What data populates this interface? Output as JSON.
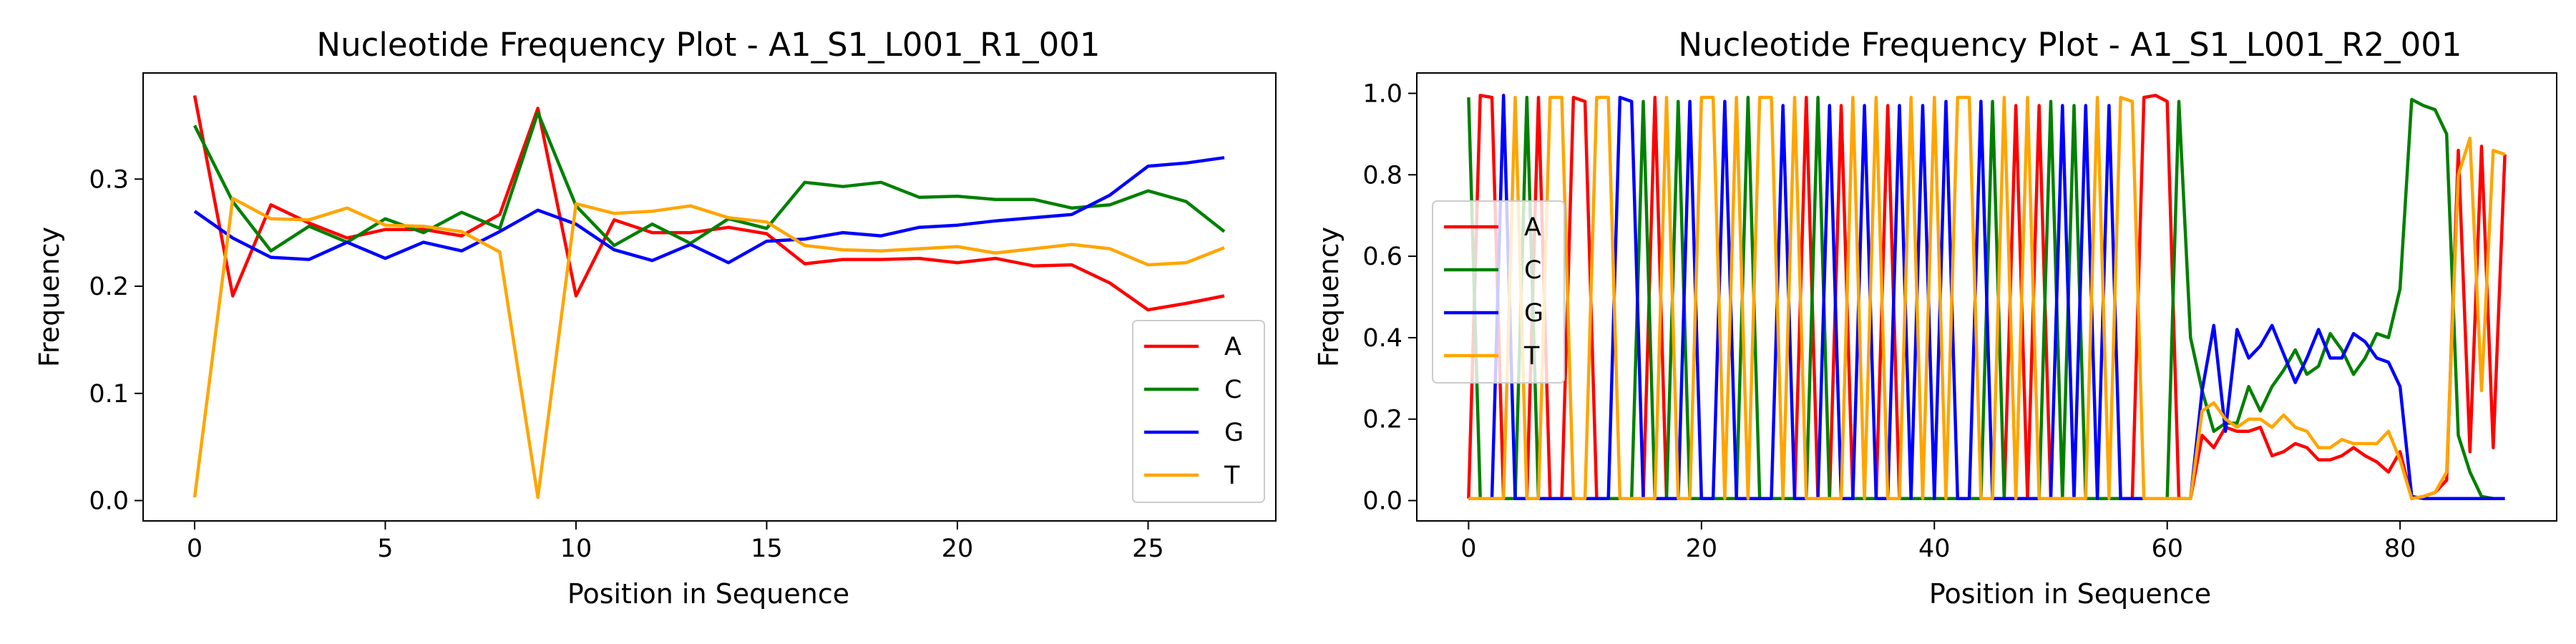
{
  "colors": {
    "A": "#ff0000",
    "C": "#008000",
    "G": "#0000ff",
    "T": "#ffa500"
  },
  "chart_data": [
    {
      "type": "line",
      "title": "Nucleotide Frequency Plot - A1_S1_L001_R1_001",
      "xlabel": "Position in Sequence",
      "ylabel": "Frequency",
      "xlim": [
        -1.35,
        28.35
      ],
      "ylim": [
        -0.019,
        0.399
      ],
      "xticks": [
        0,
        5,
        10,
        15,
        20,
        25
      ],
      "yticks": [
        0.0,
        0.1,
        0.2,
        0.3
      ],
      "legend": "lower-right",
      "x_start": 0,
      "series": [
        {
          "name": "A",
          "values": [
            0.378,
            0.191,
            0.276,
            0.259,
            0.245,
            0.253,
            0.253,
            0.247,
            0.267,
            0.366,
            0.191,
            0.262,
            0.25,
            0.25,
            0.255,
            0.249,
            0.221,
            0.225,
            0.225,
            0.226,
            0.222,
            0.226,
            0.219,
            0.22,
            0.203,
            0.178,
            0.184,
            0.191
          ]
        },
        {
          "name": "C",
          "values": [
            0.35,
            0.279,
            0.233,
            0.256,
            0.241,
            0.263,
            0.25,
            0.269,
            0.254,
            0.362,
            0.275,
            0.238,
            0.258,
            0.24,
            0.263,
            0.254,
            0.297,
            0.293,
            0.297,
            0.283,
            0.284,
            0.281,
            0.281,
            0.273,
            0.276,
            0.289,
            0.279,
            0.251
          ]
        },
        {
          "name": "G",
          "values": [
            0.27,
            0.245,
            0.227,
            0.225,
            0.241,
            0.226,
            0.241,
            0.233,
            0.251,
            0.271,
            0.258,
            0.234,
            0.224,
            0.239,
            0.222,
            0.242,
            0.244,
            0.25,
            0.247,
            0.255,
            0.257,
            0.261,
            0.264,
            0.267,
            0.285,
            0.312,
            0.315,
            0.32
          ]
        },
        {
          "name": "T",
          "values": [
            0.003,
            0.282,
            0.263,
            0.262,
            0.273,
            0.257,
            0.256,
            0.251,
            0.232,
            0.003,
            0.277,
            0.268,
            0.27,
            0.275,
            0.264,
            0.26,
            0.238,
            0.234,
            0.233,
            0.235,
            0.237,
            0.231,
            0.235,
            0.239,
            0.235,
            0.22,
            0.222,
            0.236
          ]
        }
      ]
    },
    {
      "type": "line",
      "title": "Nucleotide Frequency Plot - A1_S1_L001_R2_001",
      "xlabel": "Position in Sequence",
      "ylabel": "Frequency",
      "xlim": [
        -4.45,
        93.45
      ],
      "ylim": [
        -0.05,
        1.05
      ],
      "xticks": [
        0,
        20,
        40,
        60,
        80
      ],
      "yticks": [
        0.0,
        0.2,
        0.4,
        0.6,
        0.8,
        1.0
      ],
      "legend": "center-left",
      "x_start": 0,
      "series": [
        {
          "name": "A",
          "values": [
            0.005,
            0.995,
            0.99,
            0.005,
            0.005,
            0.005,
            0.99,
            0.005,
            0.005,
            0.99,
            0.98,
            0.005,
            0.005,
            0.005,
            0.005,
            0.005,
            0.99,
            0.005,
            0.005,
            0.005,
            0.005,
            0.005,
            0.005,
            0.005,
            0.005,
            0.005,
            0.005,
            0.005,
            0.005,
            0.99,
            0.005,
            0.005,
            0.97,
            0.005,
            0.005,
            0.005,
            0.97,
            0.005,
            0.005,
            0.005,
            0.005,
            0.005,
            0.005,
            0.005,
            0.005,
            0.005,
            0.005,
            0.97,
            0.005,
            0.97,
            0.005,
            0.005,
            0.005,
            0.005,
            0.005,
            0.005,
            0.005,
            0.005,
            0.99,
            0.995,
            0.98,
            0.005,
            0.005,
            0.16,
            0.13,
            0.18,
            0.17,
            0.17,
            0.18,
            0.11,
            0.12,
            0.14,
            0.13,
            0.1,
            0.1,
            0.11,
            0.13,
            0.11,
            0.095,
            0.07,
            0.12,
            0.005,
            0.01,
            0.02,
            0.05,
            0.86,
            0.12,
            0.87,
            0.13,
            0.85
          ]
        },
        {
          "name": "C",
          "values": [
            0.99,
            0.005,
            0.005,
            0.005,
            0.005,
            0.99,
            0.005,
            0.005,
            0.005,
            0.005,
            0.005,
            0.005,
            0.005,
            0.005,
            0.005,
            0.98,
            0.005,
            0.005,
            0.98,
            0.005,
            0.005,
            0.005,
            0.005,
            0.005,
            0.99,
            0.005,
            0.005,
            0.005,
            0.005,
            0.005,
            0.99,
            0.005,
            0.005,
            0.005,
            0.005,
            0.005,
            0.005,
            0.005,
            0.005,
            0.005,
            0.005,
            0.005,
            0.005,
            0.005,
            0.005,
            0.98,
            0.005,
            0.005,
            0.005,
            0.005,
            0.98,
            0.005,
            0.97,
            0.005,
            0.005,
            0.005,
            0.005,
            0.005,
            0.005,
            0.005,
            0.005,
            0.98,
            0.4,
            0.27,
            0.17,
            0.19,
            0.19,
            0.28,
            0.22,
            0.28,
            0.32,
            0.37,
            0.31,
            0.33,
            0.41,
            0.37,
            0.31,
            0.35,
            0.41,
            0.4,
            0.52,
            0.985,
            0.97,
            0.96,
            0.9,
            0.16,
            0.07,
            0.01,
            0.005,
            0.005
          ]
        },
        {
          "name": "G",
          "values": [
            0.005,
            0.005,
            0.005,
            0.995,
            0.005,
            0.005,
            0.005,
            0.005,
            0.005,
            0.005,
            0.005,
            0.005,
            0.005,
            0.99,
            0.98,
            0.005,
            0.005,
            0.005,
            0.005,
            0.98,
            0.005,
            0.005,
            0.98,
            0.005,
            0.005,
            0.005,
            0.005,
            0.97,
            0.005,
            0.005,
            0.005,
            0.97,
            0.005,
            0.005,
            0.97,
            0.005,
            0.005,
            0.97,
            0.005,
            0.97,
            0.005,
            0.98,
            0.005,
            0.005,
            0.98,
            0.005,
            0.005,
            0.005,
            0.005,
            0.005,
            0.005,
            0.97,
            0.005,
            0.97,
            0.005,
            0.97,
            0.005,
            0.005,
            0.005,
            0.005,
            0.005,
            0.005,
            0.005,
            0.27,
            0.43,
            0.17,
            0.42,
            0.35,
            0.38,
            0.43,
            0.36,
            0.29,
            0.35,
            0.42,
            0.35,
            0.35,
            0.41,
            0.39,
            0.35,
            0.34,
            0.28,
            0.01,
            0.005,
            0.005,
            0.005,
            0.005,
            0.005,
            0.005,
            0.005,
            0.005
          ]
        },
        {
          "name": "T",
          "values": [
            0.005,
            0.005,
            0.005,
            0.005,
            0.99,
            0.005,
            0.005,
            0.99,
            0.99,
            0.005,
            0.005,
            0.99,
            0.99,
            0.005,
            0.005,
            0.005,
            0.005,
            0.99,
            0.005,
            0.005,
            0.99,
            0.99,
            0.005,
            0.99,
            0.005,
            0.99,
            0.99,
            0.005,
            0.99,
            0.005,
            0.005,
            0.005,
            0.005,
            0.99,
            0.005,
            0.99,
            0.005,
            0.005,
            0.99,
            0.005,
            0.99,
            0.005,
            0.99,
            0.99,
            0.005,
            0.005,
            0.99,
            0.005,
            0.99,
            0.005,
            0.005,
            0.005,
            0.005,
            0.005,
            0.99,
            0.005,
            0.99,
            0.98,
            0.005,
            0.005,
            0.005,
            0.005,
            0.005,
            0.22,
            0.24,
            0.2,
            0.18,
            0.2,
            0.2,
            0.18,
            0.21,
            0.18,
            0.17,
            0.13,
            0.13,
            0.15,
            0.14,
            0.14,
            0.14,
            0.17,
            0.1,
            0.005,
            0.01,
            0.02,
            0.07,
            0.8,
            0.89,
            0.27,
            0.86,
            0.85
          ]
        }
      ]
    }
  ]
}
